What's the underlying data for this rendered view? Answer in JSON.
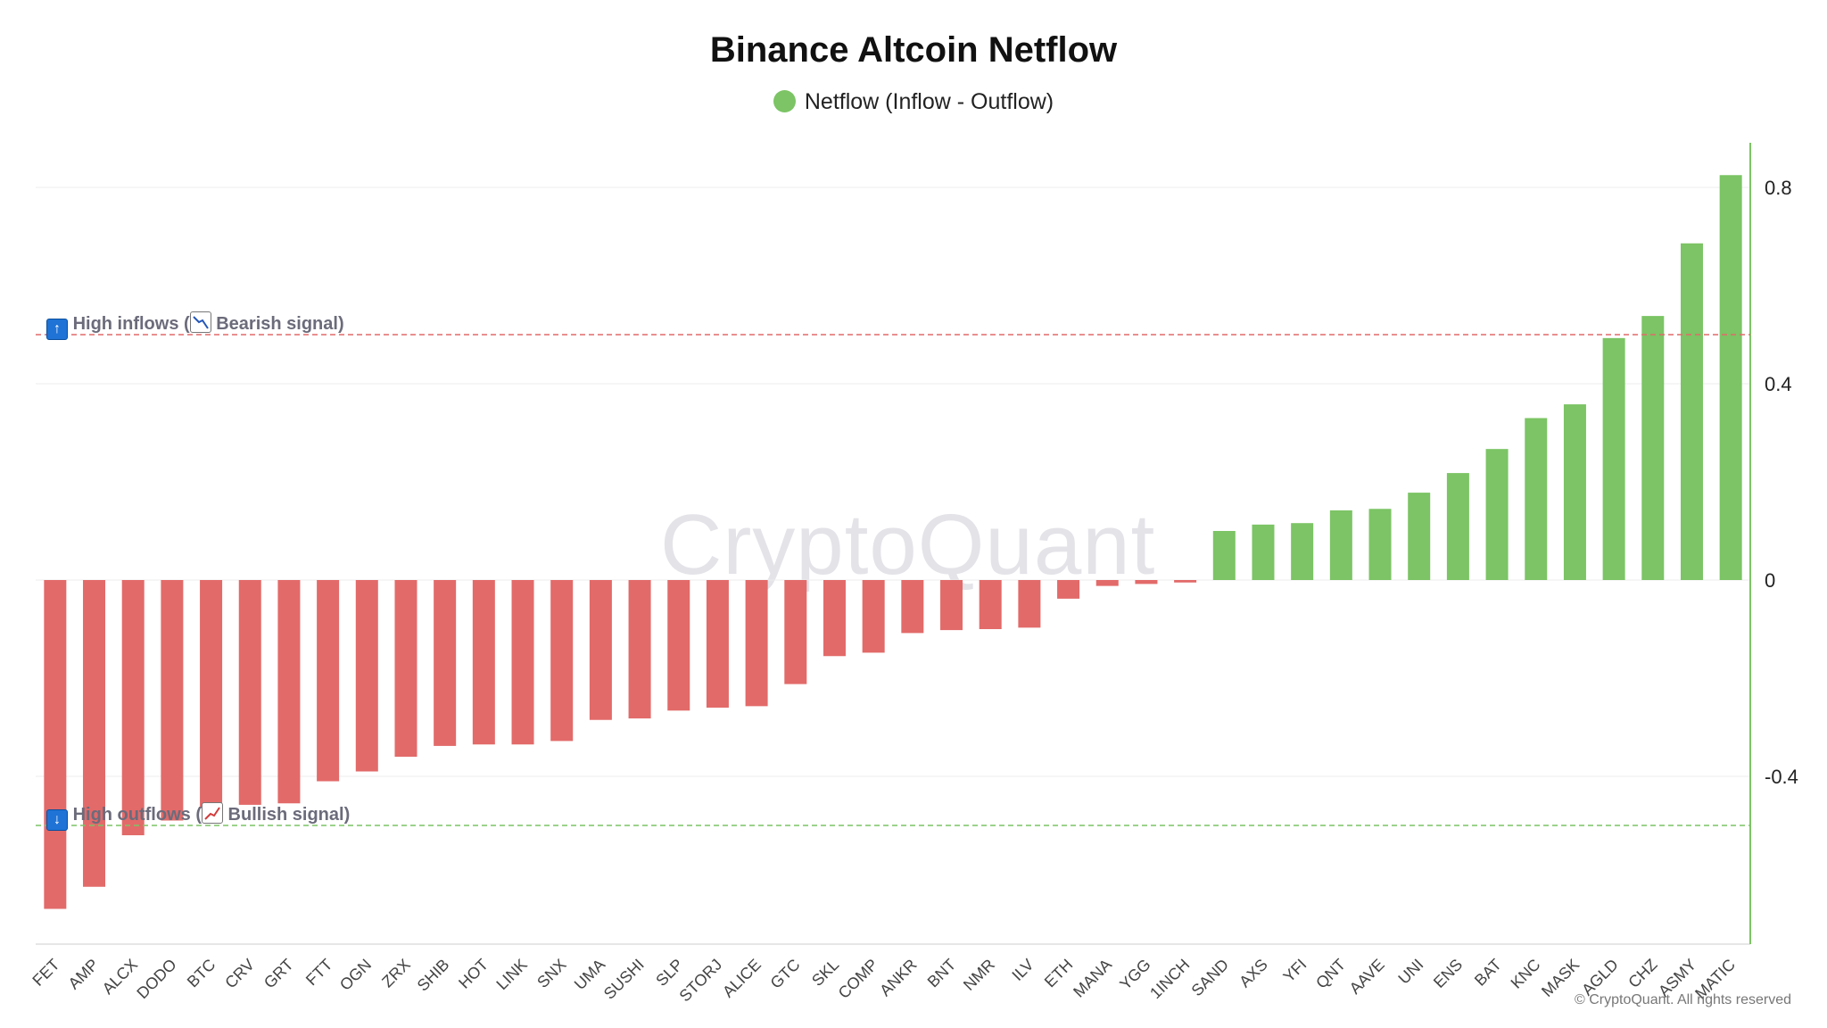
{
  "page": {
    "watermark": "CryptoQuant",
    "copyright": "© CryptoQuant. All rights reserved"
  },
  "chart_data": {
    "type": "bar",
    "title": "Binance Altcoin Netflow",
    "legend_position": "top-center",
    "grid": true,
    "series": [
      {
        "name": "Netflow (Inflow - Outflow)",
        "color": "#7cc465",
        "negative_color": "#e26a69",
        "values": [
          -0.67,
          -0.625,
          -0.52,
          -0.49,
          -0.465,
          -0.458,
          -0.455,
          -0.41,
          -0.39,
          -0.36,
          -0.338,
          -0.335,
          -0.335,
          -0.328,
          -0.285,
          -0.282,
          -0.266,
          -0.26,
          -0.257,
          -0.212,
          -0.155,
          -0.148,
          -0.108,
          -0.102,
          -0.1,
          -0.097,
          -0.038,
          -0.012,
          -0.008,
          -0.005,
          0.1,
          0.113,
          0.116,
          0.142,
          0.145,
          0.178,
          0.218,
          0.267,
          0.33,
          0.358,
          0.493,
          0.538,
          0.686,
          0.825
        ]
      }
    ],
    "categories": [
      "FET",
      "AMP",
      "ALCX",
      "DODO",
      "BTC",
      "CRV",
      "GRT",
      "FTT",
      "OGN",
      "ZRX",
      "SHIB",
      "HOT",
      "LINK",
      "SNX",
      "UMA",
      "SUSHI",
      "SLP",
      "STORJ",
      "ALICE",
      "GTC",
      "SKL",
      "COMP",
      "ANKR",
      "BNT",
      "NMR",
      "ILV",
      "ETH",
      "MANA",
      "YGG",
      "1INCH",
      "SAND",
      "AXS",
      "YFI",
      "QNT",
      "AAVE",
      "UNI",
      "ENS",
      "BAT",
      "KNC",
      "MASK",
      "AGLD",
      "CHZ",
      "ASMY",
      "MATIC"
    ],
    "y_ticks": [
      "0.8",
      "0.4",
      "0",
      "-0.4"
    ],
    "ylim": [
      -0.75,
      0.9
    ],
    "reference_lines": [
      {
        "value": 0.5,
        "color": "#e26a69",
        "label_main": "High inflows",
        "label_paren": "Bearish signal",
        "icon": "up-arrow-icon"
      },
      {
        "value": -0.5,
        "color": "#7cc465",
        "label_main": "High outflows",
        "label_paren": "Bullish signal",
        "icon": "down-arrow-icon"
      }
    ]
  }
}
